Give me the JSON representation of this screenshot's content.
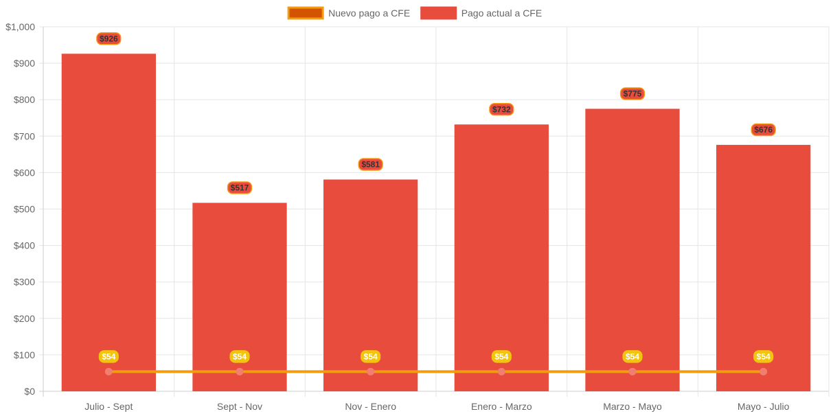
{
  "chart_data": {
    "type": "bar",
    "categories": [
      "Julio - Sept",
      "Sept - Nov",
      "Nov - Enero",
      "Enero - Marzo",
      "Marzo - Mayo",
      "Mayo - Julio"
    ],
    "series": [
      {
        "name": "Nuevo pago a CFE",
        "kind": "line",
        "values": [
          54,
          54,
          54,
          54,
          54,
          54
        ],
        "labels": [
          "$54",
          "$54",
          "$54",
          "$54",
          "$54",
          "$54"
        ],
        "color": "#f39c12",
        "point_color": "#f27e6f",
        "label_bg": "#f1c40f",
        "label_text_color": "#ffffff",
        "legend_fill": "#d35400",
        "legend_border": "#f39c12"
      },
      {
        "name": "Pago actual a CFE",
        "kind": "bar",
        "values": [
          926,
          517,
          581,
          732,
          775,
          676
        ],
        "labels": [
          "$926",
          "$517",
          "$581",
          "$732",
          "$775",
          "$676"
        ],
        "color": "#e74c3c",
        "label_bg": "#e74c3c",
        "label_border": "#f39c12",
        "label_text_color": "#333333"
      }
    ],
    "ylim": [
      0,
      1000
    ],
    "yticks": [
      "$0",
      "$100",
      "$200",
      "$300",
      "$400",
      "$500",
      "$600",
      "$700",
      "$800",
      "$900",
      "$1,000"
    ],
    "grid": true,
    "legend": "top-center"
  }
}
